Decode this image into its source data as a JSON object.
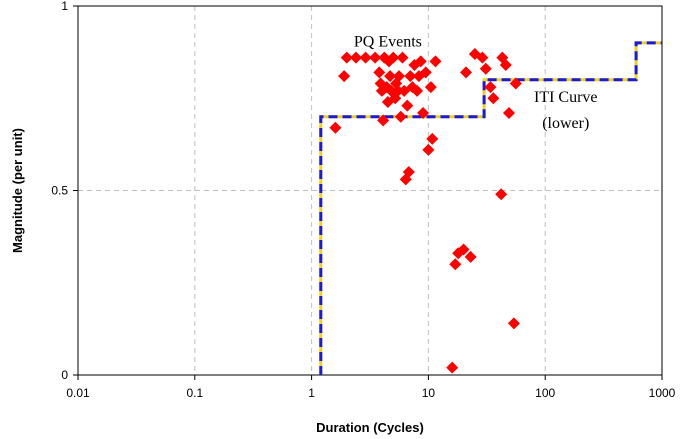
{
  "chart_data": {
    "type": "scatter",
    "title": "",
    "xlabel": "Duration (Cycles)",
    "ylabel": "Magnitude (per unit)",
    "x_scale": "log",
    "xlim": [
      0.01,
      1000
    ],
    "ylim": [
      0,
      1
    ],
    "x_ticks": [
      {
        "value": 0.01,
        "label": "0.01"
      },
      {
        "value": 0.1,
        "label": "0.1"
      },
      {
        "value": 1,
        "label": "1"
      },
      {
        "value": 10,
        "label": "10"
      },
      {
        "value": 100,
        "label": "100"
      },
      {
        "value": 1000,
        "label": "1000"
      }
    ],
    "y_ticks": [
      {
        "value": 0,
        "label": "0"
      },
      {
        "value": 0.5,
        "label": "0.5"
      },
      {
        "value": 1,
        "label": "1"
      }
    ],
    "grid": true,
    "annotations": [
      {
        "text": "PQ Events",
        "x": 4.5,
        "y": 0.89
      },
      {
        "text": "ITI Curve",
        "x": 150,
        "y": 0.74
      },
      {
        "text": "(lower)",
        "x": 150,
        "y": 0.67
      }
    ],
    "series": [
      {
        "name": "",
        "kind": "points",
        "marker": "diamond",
        "color": "#ff0000",
        "points": [
          [
            1.6,
            0.67
          ],
          [
            1.9,
            0.81
          ],
          [
            2.0,
            0.86
          ],
          [
            2.4,
            0.86
          ],
          [
            2.9,
            0.86
          ],
          [
            3.5,
            0.86
          ],
          [
            3.8,
            0.82
          ],
          [
            3.9,
            0.79
          ],
          [
            4.0,
            0.77
          ],
          [
            4.1,
            0.69
          ],
          [
            4.2,
            0.86
          ],
          [
            4.4,
            0.78
          ],
          [
            4.5,
            0.74
          ],
          [
            4.6,
            0.85
          ],
          [
            4.7,
            0.81
          ],
          [
            4.8,
            0.77
          ],
          [
            5.0,
            0.86
          ],
          [
            5.2,
            0.75
          ],
          [
            5.3,
            0.79
          ],
          [
            5.5,
            0.77
          ],
          [
            5.6,
            0.81
          ],
          [
            5.8,
            0.7
          ],
          [
            6.0,
            0.86
          ],
          [
            6.2,
            0.77
          ],
          [
            6.4,
            0.53
          ],
          [
            6.6,
            0.73
          ],
          [
            6.8,
            0.55
          ],
          [
            7.0,
            0.81
          ],
          [
            7.3,
            0.78
          ],
          [
            7.6,
            0.84
          ],
          [
            8.0,
            0.77
          ],
          [
            8.3,
            0.81
          ],
          [
            8.6,
            0.85
          ],
          [
            9.0,
            0.71
          ],
          [
            9.5,
            0.82
          ],
          [
            10.0,
            0.61
          ],
          [
            10.5,
            0.78
          ],
          [
            10.8,
            0.64
          ],
          [
            11.5,
            0.85
          ],
          [
            21,
            0.82
          ],
          [
            25,
            0.87
          ],
          [
            29,
            0.86
          ],
          [
            31,
            0.83
          ],
          [
            34,
            0.78
          ],
          [
            36,
            0.75
          ],
          [
            43,
            0.86
          ],
          [
            46,
            0.84
          ],
          [
            49,
            0.71
          ],
          [
            56,
            0.79
          ],
          [
            42,
            0.49
          ],
          [
            18,
            0.33
          ],
          [
            20,
            0.34
          ],
          [
            17,
            0.3
          ],
          [
            23,
            0.32
          ],
          [
            54,
            0.14
          ],
          [
            16,
            0.02
          ]
        ]
      },
      {
        "name": "",
        "kind": "step-line",
        "color": "#1a1ad8",
        "dash_color": "#f0d020",
        "points": [
          [
            1.2,
            0
          ],
          [
            1.2,
            0.7
          ],
          [
            30,
            0.7
          ],
          [
            30,
            0.8
          ],
          [
            600,
            0.8
          ],
          [
            600,
            0.9
          ],
          [
            1000,
            0.9
          ]
        ]
      }
    ]
  }
}
